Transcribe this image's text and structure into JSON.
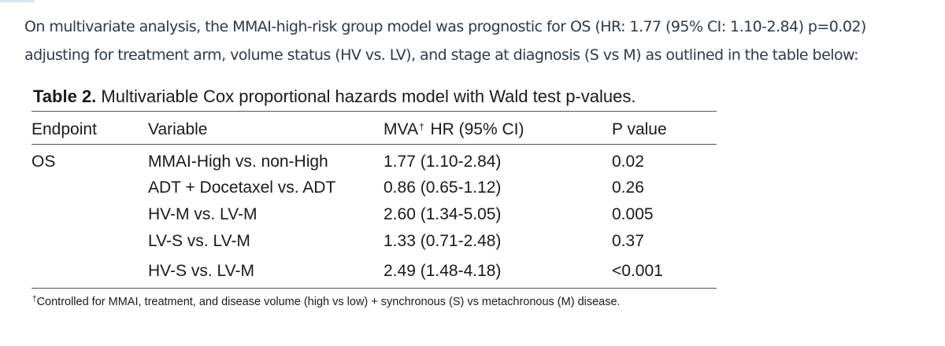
{
  "intro": {
    "line1": "On multivariate analysis, the MMAI-high-risk group model was prognostic for OS (HR: 1.77 (95% CI: 1.10-2.84) p=0.02)",
    "line2": "adjusting for treatment arm, volume status (HV vs. LV), and stage at diagnosis (S vs M) as outlined in the table below:"
  },
  "table": {
    "caption_label": "Table 2.",
    "caption_text": "Multivariable Cox proportional hazards model with Wald test p-values.",
    "headers": {
      "endpoint": "Endpoint",
      "variable": "Variable",
      "hr_prefix": "MVA",
      "hr_sup": "†",
      "hr_suffix": "HR (95% CI)",
      "p": "P value"
    },
    "endpoint": "OS",
    "rows": [
      {
        "variable": "MMAI-High vs. non-High",
        "hr": "1.77 (1.10-2.84)",
        "p": "0.02"
      },
      {
        "variable": "ADT + Docetaxel vs. ADT",
        "hr": "0.86 (0.65-1.12)",
        "p": "0.26"
      },
      {
        "variable": "HV-M vs. LV-M",
        "hr": "2.60 (1.34-5.05)",
        "p": "0.005"
      },
      {
        "variable": "LV-S vs. LV-M",
        "hr": "1.33 (0.71-2.48)",
        "p": "0.37"
      },
      {
        "variable": "HV-S vs. LV-M",
        "hr": "2.49 (1.48-4.18)",
        "p": "<0.001"
      }
    ],
    "footnote_sup": "†",
    "footnote": "Controlled for MMAI, treatment, and disease volume (high vs low) + synchronous (S) vs metachronous (M) disease."
  }
}
